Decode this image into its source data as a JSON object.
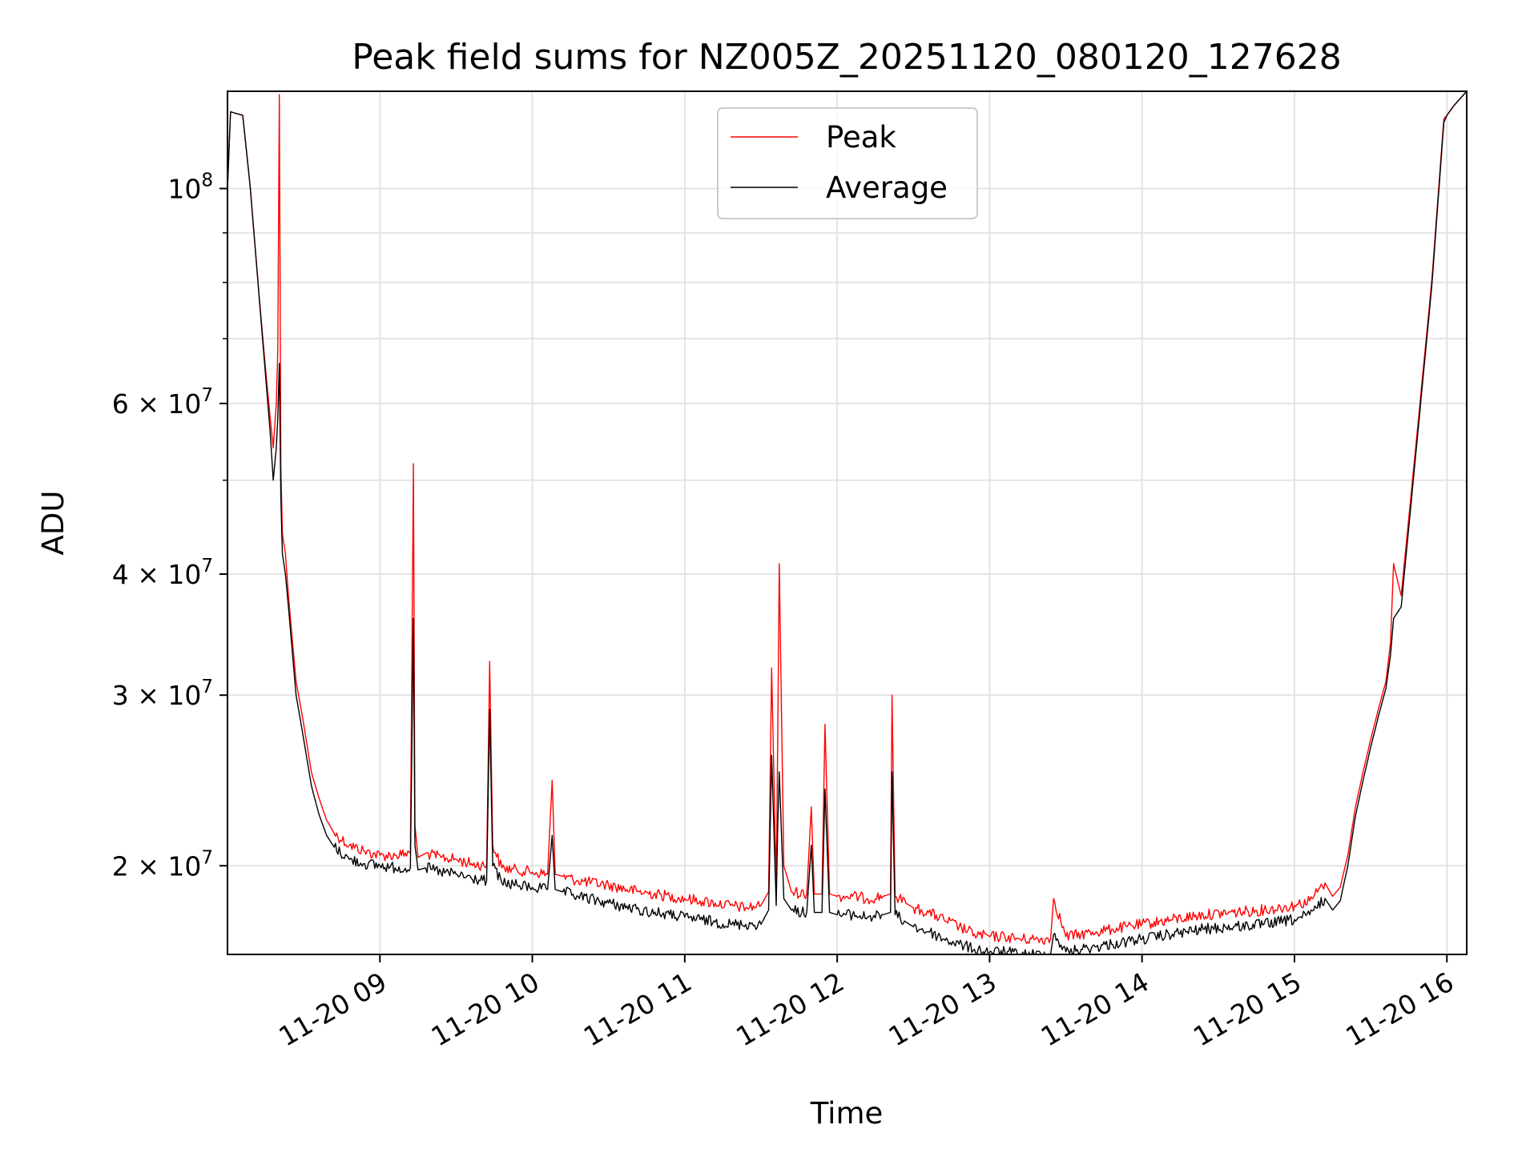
{
  "chart_data": {
    "type": "line",
    "title": "Peak field sums for NZ005Z_20251120_080120_127628",
    "xlabel": "Time",
    "ylabel": "ADU",
    "yscale": "log",
    "grid": true,
    "legend_position": "upper center",
    "xlim_hours": [
      8.0,
      16.13
    ],
    "ylim": [
      16200000,
      126000000
    ],
    "x_ticks": [
      {
        "value": 9,
        "label": "11-20 09"
      },
      {
        "value": 10,
        "label": "11-20 10"
      },
      {
        "value": 11,
        "label": "11-20 11"
      },
      {
        "value": 12,
        "label": "11-20 12"
      },
      {
        "value": 13,
        "label": "11-20 13"
      },
      {
        "value": 14,
        "label": "11-20 14"
      },
      {
        "value": 15,
        "label": "11-20 15"
      },
      {
        "value": 16,
        "label": "11-20 16"
      }
    ],
    "y_ticks": [
      {
        "value": 100000000,
        "base": "10",
        "exp": "8"
      },
      {
        "value": 60000000,
        "base": "6 × 10",
        "exp": "7"
      },
      {
        "value": 40000000,
        "base": "4 × 10",
        "exp": "7"
      },
      {
        "value": 30000000,
        "base": "3 × 10",
        "exp": "7"
      },
      {
        "value": 20000000,
        "base": "2 × 10",
        "exp": "7"
      }
    ],
    "y_minor_ticks": [
      70000000,
      80000000,
      90000000,
      50000000
    ],
    "series": [
      {
        "name": "Peak",
        "color": "#ff0000",
        "x": [
          8.0,
          8.02,
          8.1,
          8.15,
          8.2,
          8.25,
          8.28,
          8.3,
          8.32,
          8.33,
          8.34,
          8.35,
          8.36,
          8.38,
          8.4,
          8.42,
          8.45,
          8.5,
          8.55,
          8.6,
          8.65,
          8.7,
          8.8,
          8.9,
          9.0,
          9.1,
          9.2,
          9.22,
          9.23,
          9.25,
          9.3,
          9.4,
          9.5,
          9.6,
          9.7,
          9.72,
          9.74,
          9.8,
          9.9,
          10.0,
          10.1,
          10.13,
          10.15,
          10.2,
          10.3,
          10.5,
          10.7,
          10.9,
          11.0,
          11.1,
          11.2,
          11.3,
          11.4,
          11.5,
          11.55,
          11.57,
          11.6,
          11.61,
          11.62,
          11.65,
          11.7,
          11.8,
          11.83,
          11.85,
          11.9,
          11.92,
          11.95,
          12.0,
          12.1,
          12.2,
          12.3,
          12.35,
          12.36,
          12.38,
          12.45,
          12.5,
          12.6,
          12.7,
          12.8,
          12.9,
          13.0,
          13.1,
          13.2,
          13.3,
          13.4,
          13.42,
          13.5,
          13.6,
          13.7,
          13.8,
          13.9,
          14.0,
          14.2,
          14.4,
          14.6,
          14.8,
          15.0,
          15.1,
          15.2,
          15.25,
          15.3,
          15.35,
          15.4,
          15.45,
          15.5,
          15.55,
          15.6,
          15.63,
          15.65,
          15.7,
          15.8,
          15.9,
          15.98,
          16.0,
          16.05,
          16.13
        ],
        "y": [
          100000000,
          120000000,
          119000000,
          100000000,
          80000000,
          65000000,
          58000000,
          54000000,
          60000000,
          68000000,
          125000000,
          52000000,
          44000000,
          42000000,
          38000000,
          35000000,
          31000000,
          28000000,
          25000000,
          23500000,
          22300000,
          21600000,
          21000000,
          20700000,
          20500000,
          20500000,
          20600000,
          52000000,
          22000000,
          20400000,
          20600000,
          20400000,
          20300000,
          20100000,
          20000000,
          32500000,
          21000000,
          19900000,
          19800000,
          19700000,
          19600000,
          24500000,
          19600000,
          19500000,
          19300000,
          19100000,
          18800000,
          18600000,
          18500000,
          18400000,
          18300000,
          18200000,
          18100000,
          18200000,
          18800000,
          32000000,
          19000000,
          27000000,
          41000000,
          20000000,
          18800000,
          18700000,
          23000000,
          18700000,
          18700000,
          28000000,
          18700000,
          18600000,
          18600000,
          18500000,
          18600000,
          18700000,
          30000000,
          18600000,
          18300000,
          18100000,
          17900000,
          17600000,
          17300000,
          17000000,
          16900000,
          16900000,
          16800000,
          16800000,
          16800000,
          18500000,
          16900000,
          17000000,
          17100000,
          17200000,
          17300000,
          17400000,
          17600000,
          17800000,
          17900000,
          18000000,
          18200000,
          18400000,
          19200000,
          18600000,
          19000000,
          20500000,
          23000000,
          25000000,
          27000000,
          29000000,
          31000000,
          34000000,
          41000000,
          38000000,
          55000000,
          80000000,
          118000000,
          119000000,
          122000000,
          126000000
        ]
      },
      {
        "name": "Average",
        "color": "#000000",
        "x": [
          8.0,
          8.02,
          8.1,
          8.15,
          8.2,
          8.25,
          8.28,
          8.3,
          8.32,
          8.33,
          8.34,
          8.35,
          8.36,
          8.38,
          8.4,
          8.42,
          8.45,
          8.5,
          8.55,
          8.6,
          8.65,
          8.7,
          8.8,
          8.9,
          9.0,
          9.1,
          9.2,
          9.22,
          9.23,
          9.25,
          9.3,
          9.4,
          9.5,
          9.6,
          9.7,
          9.72,
          9.74,
          9.8,
          9.9,
          10.0,
          10.1,
          10.13,
          10.15,
          10.2,
          10.3,
          10.5,
          10.7,
          10.9,
          11.0,
          11.1,
          11.2,
          11.3,
          11.4,
          11.5,
          11.55,
          11.57,
          11.6,
          11.61,
          11.62,
          11.65,
          11.7,
          11.8,
          11.83,
          11.85,
          11.9,
          11.92,
          11.95,
          12.0,
          12.1,
          12.2,
          12.3,
          12.35,
          12.36,
          12.38,
          12.45,
          12.5,
          12.6,
          12.7,
          12.8,
          12.9,
          13.0,
          13.1,
          13.2,
          13.3,
          13.4,
          13.42,
          13.5,
          13.6,
          13.7,
          13.8,
          13.9,
          14.0,
          14.2,
          14.4,
          14.6,
          14.8,
          15.0,
          15.1,
          15.2,
          15.25,
          15.3,
          15.35,
          15.4,
          15.45,
          15.5,
          15.55,
          15.6,
          15.63,
          15.65,
          15.7,
          15.8,
          15.9,
          15.98,
          16.0,
          16.05,
          16.13
        ],
        "y": [
          100000000,
          120000000,
          119000000,
          100000000,
          80000000,
          64000000,
          56000000,
          50000000,
          54000000,
          58000000,
          66000000,
          48000000,
          42000000,
          40000000,
          37000000,
          34000000,
          30000000,
          27000000,
          24200000,
          22600000,
          21500000,
          20900000,
          20300000,
          20100000,
          20000000,
          19900000,
          19900000,
          36000000,
          21000000,
          19800000,
          19900000,
          19700000,
          19600000,
          19400000,
          19300000,
          29000000,
          20000000,
          19200000,
          19100000,
          19000000,
          18900000,
          21500000,
          18900000,
          18800000,
          18600000,
          18300000,
          18000000,
          17800000,
          17700000,
          17600000,
          17500000,
          17400000,
          17400000,
          17400000,
          18000000,
          26000000,
          18200000,
          22000000,
          25000000,
          18500000,
          18000000,
          17900000,
          21000000,
          17900000,
          17900000,
          24000000,
          17900000,
          17800000,
          17800000,
          17700000,
          17800000,
          17900000,
          25000000,
          17800000,
          17500000,
          17300000,
          17100000,
          16800000,
          16600000,
          16400000,
          16300000,
          16300000,
          16200000,
          16200000,
          16200000,
          17000000,
          16300000,
          16400000,
          16500000,
          16600000,
          16700000,
          16800000,
          17000000,
          17200000,
          17300000,
          17400000,
          17600000,
          17800000,
          18500000,
          18000000,
          18400000,
          20000000,
          22500000,
          24500000,
          26500000,
          28500000,
          30500000,
          33000000,
          36000000,
          37000000,
          54000000,
          79000000,
          117000000,
          119000000,
          122000000,
          126000000
        ]
      }
    ]
  }
}
